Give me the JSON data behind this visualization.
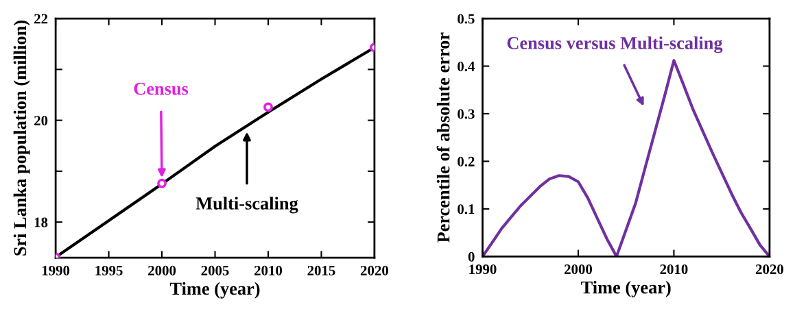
{
  "chart_data": [
    {
      "type": "line",
      "xlabel": "Time (year)",
      "ylabel": "Sri Lanka population (million)",
      "series": [
        {
          "name": "Multi-scaling",
          "type": "line",
          "color": "#000000",
          "x": [
            1990,
            1995,
            2000,
            2005,
            2010,
            2015,
            2020
          ],
          "values": [
            17.31,
            18.03,
            18.75,
            19.49,
            20.16,
            20.81,
            21.43
          ]
        },
        {
          "name": "Census",
          "type": "scatter",
          "color": "#e020e0",
          "marker": "circle",
          "x": [
            1990,
            2000,
            2010,
            2020
          ],
          "values": [
            17.31,
            18.76,
            20.26,
            21.43
          ]
        }
      ],
      "xlim": [
        1990,
        2020
      ],
      "xticks": [
        1990,
        1995,
        2000,
        2005,
        2010,
        2015,
        2020
      ],
      "ylim": [
        17.3,
        22
      ],
      "yticks": [
        18,
        {
          "value": 19,
          "label": null
        },
        20,
        {
          "value": 21,
          "label": null
        },
        22
      ],
      "grid": false,
      "legend": false
    },
    {
      "type": "line",
      "xlabel": "Time (year)",
      "ylabel": "Percentile of absolute error",
      "series": [
        {
          "name": "Census versus Multi-scaling",
          "color": "#7030a0",
          "x": [
            1990,
            1991,
            1992,
            1993,
            1994,
            1996,
            1997,
            1998,
            1999,
            2000,
            2001,
            2002,
            2003,
            2004,
            2005,
            2006,
            2007,
            2008,
            2009,
            2010,
            2011,
            2012,
            2013,
            2014,
            2015,
            2016,
            2017,
            2018,
            2019,
            2020
          ],
          "values": [
            0,
            0.029,
            0.059,
            0.083,
            0.107,
            0.147,
            0.163,
            0.17,
            0.168,
            0.157,
            0.123,
            0.08,
            0.037,
            0,
            0.056,
            0.112,
            0.187,
            0.261,
            0.335,
            0.412,
            0.361,
            0.309,
            0.264,
            0.219,
            0.176,
            0.133,
            0.093,
            0.059,
            0.024,
            0
          ]
        }
      ],
      "xlim": [
        1990,
        2020
      ],
      "xticks": [
        1990,
        2000,
        2010,
        2020
      ],
      "ylim": [
        0,
        0.5
      ],
      "yticks": [
        0,
        0.1,
        0.2,
        0.3,
        0.4,
        0.5
      ],
      "grid": false,
      "legend": false
    }
  ]
}
